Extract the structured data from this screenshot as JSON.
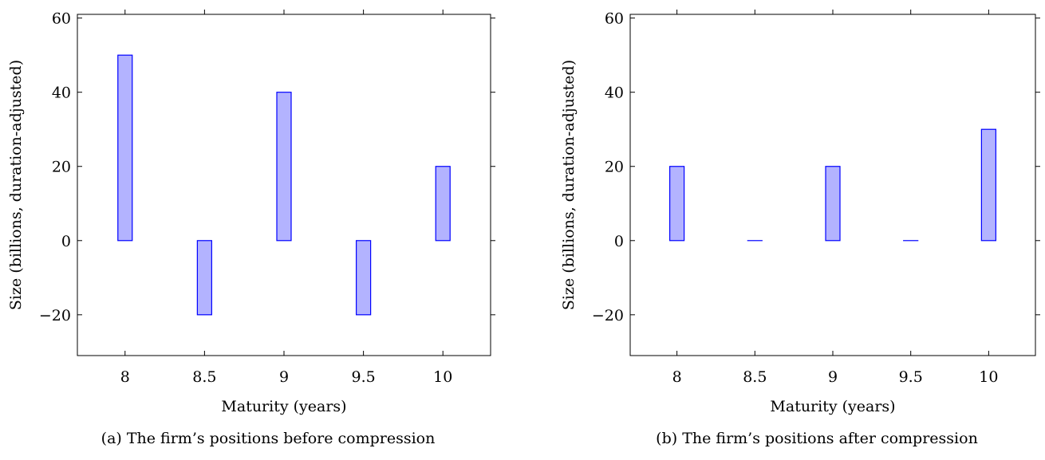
{
  "colors": {
    "bar_fill": "#b3b3ff",
    "bar_stroke": "#0000ff",
    "axis": "#000000"
  },
  "chart_data": [
    {
      "type": "bar",
      "caption": "(a)  The firm’s positions before compression",
      "xlabel": "Maturity (years)",
      "ylabel": "Size (billions, duration-adjusted)",
      "x": [
        8,
        8.5,
        9,
        9.5,
        10
      ],
      "xtick_labels": [
        "8",
        "8.5",
        "9",
        "9.5",
        "10"
      ],
      "values": [
        50,
        -20,
        40,
        -20,
        20
      ],
      "ylim": [
        -31,
        61
      ],
      "xlim": [
        7.7,
        10.3
      ],
      "yticks": [
        -20,
        0,
        20,
        40,
        60
      ],
      "ytick_labels": [
        "−20",
        "0",
        "20",
        "40",
        "60"
      ],
      "grid": false
    },
    {
      "type": "bar",
      "caption": "(b)  The firm’s positions after compression",
      "xlabel": "Maturity (years)",
      "ylabel": "Size (billions, duration-adjusted)",
      "x": [
        8,
        8.5,
        9,
        9.5,
        10
      ],
      "xtick_labels": [
        "8",
        "8.5",
        "9",
        "9.5",
        "10"
      ],
      "values": [
        20,
        0,
        20,
        0,
        30
      ],
      "ylim": [
        -31,
        61
      ],
      "xlim": [
        7.7,
        10.3
      ],
      "yticks": [
        -20,
        0,
        20,
        40,
        60
      ],
      "ytick_labels": [
        "−20",
        "0",
        "20",
        "40",
        "60"
      ],
      "grid": false
    }
  ]
}
